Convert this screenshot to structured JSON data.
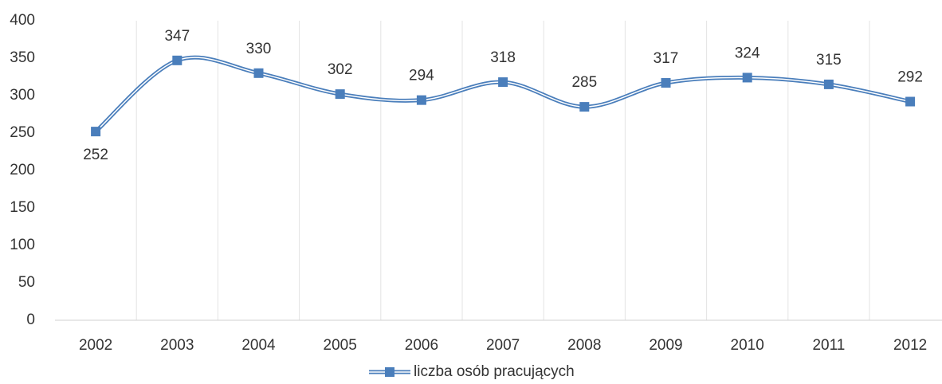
{
  "chart_data": {
    "type": "line",
    "categories": [
      "2002",
      "2003",
      "2004",
      "2005",
      "2006",
      "2007",
      "2008",
      "2009",
      "2010",
      "2011",
      "2012"
    ],
    "series": [
      {
        "name": "liczba osób pracujących",
        "color": "#4a7ebb",
        "values": [
          252,
          347,
          330,
          302,
          294,
          318,
          285,
          317,
          324,
          315,
          292
        ]
      }
    ],
    "ylim": [
      0,
      400
    ],
    "yticks": [
      0,
      50,
      100,
      150,
      200,
      250,
      300,
      350,
      400
    ],
    "grid": true,
    "smooth": true,
    "legend": "bottom"
  }
}
